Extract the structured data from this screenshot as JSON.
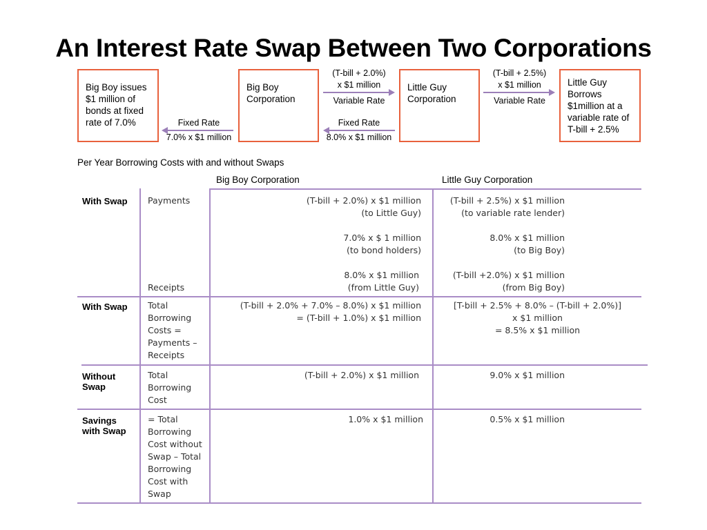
{
  "title": "An Interest Rate Swap Between Two Corporations",
  "colors": {
    "box_border": "#e8603c",
    "arrow": "#9b7fb8",
    "table_lines": "#a98cc6"
  },
  "diagram": {
    "box1": "Big Boy issues\n$1 million of\nbonds at fixed\nrate of 7.0%",
    "box2": "Big Boy\nCorporation",
    "box3": "Little Guy\nCorporation",
    "box4": "Little Guy\nBorrows\n$1million at a\nvariable rate of\nT-bill + 2.5%",
    "flow_fixed_left": {
      "top": "Fixed Rate",
      "bottom": "7.0% x $1 million"
    },
    "flow_bb_to_lg": {
      "top": "(T-bill + 2.0%)\nx $1 million",
      "bottom": "Variable Rate"
    },
    "flow_lg_to_bb": {
      "top": "Fixed Rate",
      "bottom": "8.0% x $1 million"
    },
    "flow_lg_right": {
      "top": "(T-bill + 2.5%)\nx $1 million",
      "bottom": "Variable Rate"
    }
  },
  "table": {
    "caption": "Per Year Borrowing Costs with and without Swaps",
    "col_bigboy": "Big Boy Corporation",
    "col_littleguy": "Little Guy Corporation",
    "row1": {
      "label": "With Swap",
      "payments": "Payments",
      "receipts": "Receipts",
      "bb_pay1": "(T-bill + 2.0%) x $1 million\n(to Little Guy)",
      "bb_pay2": "7.0% x $ 1 million\n(to bond holders)",
      "bb_rec": "8.0% x $1 million\n(from Little Guy)",
      "lg_pay1": "(T-bill + 2.5%) x $1 million\n(to variable rate lender)",
      "lg_pay2": "8.0% x $1 million\n(to Big Boy)",
      "lg_rec": "(T-bill +2.0%) x $1 million\n(from Big Boy)"
    },
    "row2": {
      "label": "With Swap",
      "desc": "Total\nBorrowing\nCosts =\nPayments –\nReceipts",
      "bb": "(T-bill + 2.0% + 7.0% – 8.0%) x $1 million\n= (T-bill + 1.0%) x $1 million",
      "lg": "[T-bill + 2.5% + 8.0% – (T-bill + 2.0%)]\nx $1 million\n= 8.5% x $1 million"
    },
    "row3": {
      "label": "Without\nSwap",
      "desc": "Total\nBorrowing\nCost",
      "bb": "(T-bill + 2.0%) x $1 million",
      "lg": "9.0% x $1 million"
    },
    "row4": {
      "label": "Savings\nwith Swap",
      "desc": "= Total\nBorrowing\nCost without\nSwap – Total\nBorrowing\nCost with\nSwap",
      "bb": "1.0% x $1 million",
      "lg": "0.5% x $1 million"
    }
  }
}
